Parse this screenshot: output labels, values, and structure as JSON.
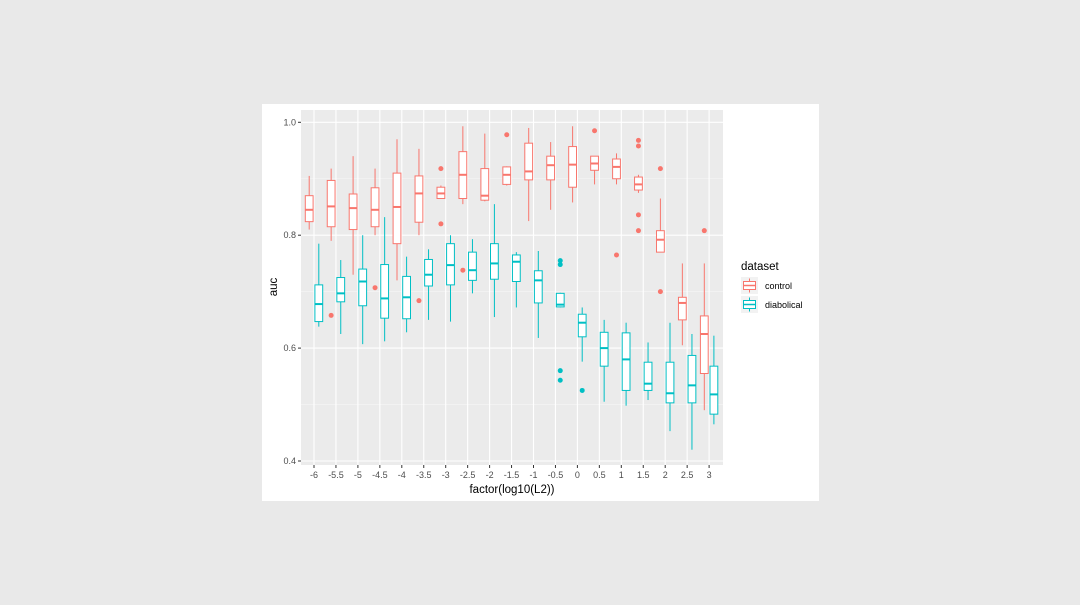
{
  "chart_data": {
    "type": "boxplot",
    "xlabel": "factor(log10(L2))",
    "ylabel": "auc",
    "ylim": [
      0.4,
      1.0
    ],
    "y_ticks": [
      "0.4",
      "0.6",
      "0.8",
      "1.0"
    ],
    "categories": [
      "-6",
      "-5.5",
      "-5",
      "-4.5",
      "-4",
      "-3.5",
      "-3",
      "-2.5",
      "-2",
      "-1.5",
      "-1",
      "-0.5",
      "0",
      "0.5",
      "1",
      "1.5",
      "2",
      "2.5",
      "3"
    ],
    "legend": {
      "title": "dataset",
      "position": "right"
    },
    "grid": true,
    "series": [
      {
        "name": "control",
        "color": "#F8766D",
        "boxes": [
          {
            "lo": 0.81,
            "q1": 0.824,
            "med": 0.845,
            "q3": 0.87,
            "hi": 0.905,
            "out": []
          },
          {
            "lo": 0.79,
            "q1": 0.815,
            "med": 0.851,
            "q3": 0.897,
            "hi": 0.918,
            "out": [
              0.658
            ]
          },
          {
            "lo": 0.73,
            "q1": 0.81,
            "med": 0.848,
            "q3": 0.873,
            "hi": 0.94,
            "out": []
          },
          {
            "lo": 0.8,
            "q1": 0.815,
            "med": 0.845,
            "q3": 0.884,
            "hi": 0.918,
            "out": [
              0.707
            ]
          },
          {
            "lo": 0.72,
            "q1": 0.785,
            "med": 0.85,
            "q3": 0.91,
            "hi": 0.97,
            "out": []
          },
          {
            "lo": 0.8,
            "q1": 0.823,
            "med": 0.874,
            "q3": 0.905,
            "hi": 0.953,
            "out": [
              0.684
            ]
          },
          {
            "lo": 0.865,
            "q1": 0.865,
            "med": 0.874,
            "q3": 0.885,
            "hi": 0.888,
            "out": [
              0.918,
              0.82
            ]
          },
          {
            "lo": 0.855,
            "q1": 0.865,
            "med": 0.907,
            "q3": 0.948,
            "hi": 0.993,
            "out": [
              0.738
            ]
          },
          {
            "lo": 0.86,
            "q1": 0.862,
            "med": 0.87,
            "q3": 0.918,
            "hi": 0.98,
            "out": []
          },
          {
            "lo": 0.888,
            "q1": 0.89,
            "med": 0.907,
            "q3": 0.921,
            "hi": 0.922,
            "out": [
              0.978
            ]
          },
          {
            "lo": 0.825,
            "q1": 0.898,
            "med": 0.913,
            "q3": 0.963,
            "hi": 0.99,
            "out": []
          },
          {
            "lo": 0.845,
            "q1": 0.898,
            "med": 0.924,
            "q3": 0.94,
            "hi": 0.965,
            "out": []
          },
          {
            "lo": 0.858,
            "q1": 0.885,
            "med": 0.925,
            "q3": 0.957,
            "hi": 0.993,
            "out": []
          },
          {
            "lo": 0.89,
            "q1": 0.915,
            "med": 0.927,
            "q3": 0.94,
            "hi": 0.94,
            "out": [
              0.985
            ]
          },
          {
            "lo": 0.89,
            "q1": 0.9,
            "med": 0.921,
            "q3": 0.935,
            "hi": 0.945,
            "out": [
              0.765
            ]
          },
          {
            "lo": 0.875,
            "q1": 0.88,
            "med": 0.89,
            "q3": 0.903,
            "hi": 0.907,
            "out": [
              0.968,
              0.958,
              0.836,
              0.808
            ]
          },
          {
            "lo": 0.77,
            "q1": 0.77,
            "med": 0.792,
            "q3": 0.808,
            "hi": 0.865,
            "out": [
              0.918,
              0.7
            ]
          },
          {
            "lo": 0.605,
            "q1": 0.65,
            "med": 0.68,
            "q3": 0.69,
            "hi": 0.75,
            "out": []
          },
          {
            "lo": 0.49,
            "q1": 0.555,
            "med": 0.625,
            "q3": 0.657,
            "hi": 0.75,
            "out": [
              0.808
            ]
          }
        ]
      },
      {
        "name": "diabolical",
        "color": "#00BFC4",
        "boxes": [
          {
            "lo": 0.638,
            "q1": 0.647,
            "med": 0.678,
            "q3": 0.712,
            "hi": 0.785,
            "out": []
          },
          {
            "lo": 0.625,
            "q1": 0.682,
            "med": 0.697,
            "q3": 0.725,
            "hi": 0.756,
            "out": []
          },
          {
            "lo": 0.607,
            "q1": 0.675,
            "med": 0.718,
            "q3": 0.74,
            "hi": 0.8,
            "out": []
          },
          {
            "lo": 0.612,
            "q1": 0.653,
            "med": 0.688,
            "q3": 0.748,
            "hi": 0.832,
            "out": []
          },
          {
            "lo": 0.628,
            "q1": 0.652,
            "med": 0.69,
            "q3": 0.727,
            "hi": 0.762,
            "out": []
          },
          {
            "lo": 0.65,
            "q1": 0.71,
            "med": 0.73,
            "q3": 0.757,
            "hi": 0.775,
            "out": []
          },
          {
            "lo": 0.647,
            "q1": 0.712,
            "med": 0.747,
            "q3": 0.785,
            "hi": 0.8,
            "out": []
          },
          {
            "lo": 0.697,
            "q1": 0.72,
            "med": 0.738,
            "q3": 0.77,
            "hi": 0.793,
            "out": []
          },
          {
            "lo": 0.655,
            "q1": 0.722,
            "med": 0.75,
            "q3": 0.785,
            "hi": 0.855,
            "out": []
          },
          {
            "lo": 0.672,
            "q1": 0.718,
            "med": 0.753,
            "q3": 0.765,
            "hi": 0.77,
            "out": []
          },
          {
            "lo": 0.618,
            "q1": 0.68,
            "med": 0.72,
            "q3": 0.737,
            "hi": 0.772,
            "out": []
          },
          {
            "lo": 0.672,
            "q1": 0.673,
            "med": 0.677,
            "q3": 0.697,
            "hi": 0.698,
            "out": [
              0.755,
              0.748,
              0.56,
              0.543
            ]
          },
          {
            "lo": 0.576,
            "q1": 0.62,
            "med": 0.645,
            "q3": 0.66,
            "hi": 0.672,
            "out": [
              0.525
            ]
          },
          {
            "lo": 0.505,
            "q1": 0.568,
            "med": 0.6,
            "q3": 0.628,
            "hi": 0.65,
            "out": []
          },
          {
            "lo": 0.498,
            "q1": 0.525,
            "med": 0.58,
            "q3": 0.627,
            "hi": 0.645,
            "out": []
          },
          {
            "lo": 0.508,
            "q1": 0.525,
            "med": 0.537,
            "q3": 0.575,
            "hi": 0.61,
            "out": []
          },
          {
            "lo": 0.453,
            "q1": 0.503,
            "med": 0.52,
            "q3": 0.575,
            "hi": 0.645,
            "out": []
          },
          {
            "lo": 0.42,
            "q1": 0.503,
            "med": 0.534,
            "q3": 0.587,
            "hi": 0.625,
            "out": []
          },
          {
            "lo": 0.465,
            "q1": 0.483,
            "med": 0.518,
            "q3": 0.568,
            "hi": 0.622,
            "out": []
          }
        ]
      }
    ]
  }
}
